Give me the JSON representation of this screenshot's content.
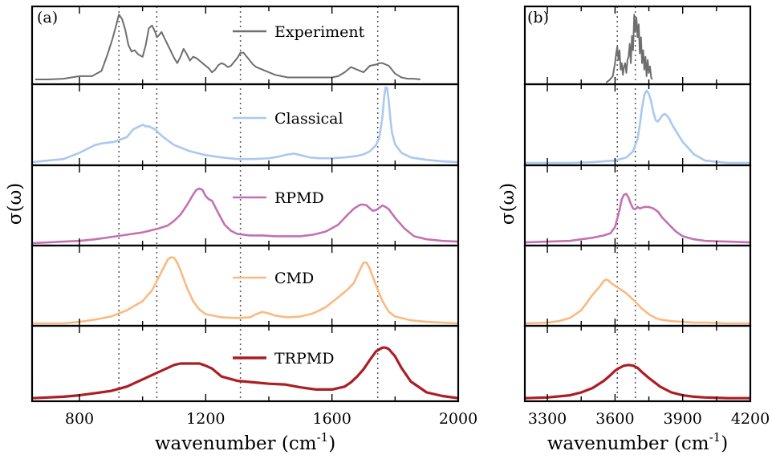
{
  "chart_data": [
    {
      "type": "line",
      "panel_label": "(a)",
      "xlabel": "wavenumber (cm",
      "xlabel_sup": "-1",
      "xlabel_close": ")",
      "ylabel": "σ(ω)",
      "xlim": [
        650,
        2000
      ],
      "xticks": [
        800,
        1200,
        1600,
        2000
      ],
      "xtick_labels": [
        "800",
        "1200",
        "1600",
        "2000"
      ],
      "minor_xticks": [
        1000,
        1400,
        1800
      ],
      "reference_lines": [
        925,
        1045,
        1310,
        1745
      ],
      "grid": false,
      "legend": "in-panel, top-center",
      "series": [
        {
          "name": "Experiment",
          "color": "#6e6e6e",
          "ylim": [
            0,
            1.15
          ],
          "x": [
            660,
            700,
            750,
            800,
            840,
            870,
            890,
            905,
            915,
            925,
            935,
            945,
            955,
            965,
            975,
            985,
            995,
            1000,
            1010,
            1020,
            1030,
            1040,
            1045,
            1050,
            1060,
            1070,
            1080,
            1090,
            1100,
            1110,
            1120,
            1130,
            1140,
            1150,
            1160,
            1170,
            1180,
            1190,
            1200,
            1210,
            1220,
            1230,
            1240,
            1250,
            1260,
            1270,
            1280,
            1290,
            1300,
            1310,
            1320,
            1330,
            1340,
            1350,
            1360,
            1380,
            1400,
            1420,
            1440,
            1460,
            1480,
            1500,
            1520,
            1540,
            1560,
            1580,
            1600,
            1620,
            1640,
            1660,
            1680,
            1700,
            1720,
            1740,
            1750,
            1760,
            1780,
            1800,
            1820,
            1840,
            1860,
            1880
          ],
          "y": [
            0.05,
            0.05,
            0.06,
            0.1,
            0.1,
            0.18,
            0.45,
            0.68,
            0.86,
            1.05,
            0.98,
            0.82,
            0.58,
            0.48,
            0.5,
            0.44,
            0.41,
            0.4,
            0.58,
            0.84,
            0.88,
            0.78,
            0.7,
            0.72,
            0.78,
            0.68,
            0.58,
            0.48,
            0.38,
            0.3,
            0.4,
            0.52,
            0.44,
            0.34,
            0.4,
            0.38,
            0.34,
            0.3,
            0.26,
            0.22,
            0.16,
            0.2,
            0.27,
            0.3,
            0.28,
            0.24,
            0.26,
            0.32,
            0.38,
            0.46,
            0.46,
            0.4,
            0.34,
            0.28,
            0.24,
            0.2,
            0.16,
            0.12,
            0.1,
            0.08,
            0.08,
            0.08,
            0.08,
            0.08,
            0.08,
            0.08,
            0.08,
            0.1,
            0.16,
            0.24,
            0.2,
            0.16,
            0.26,
            0.28,
            0.3,
            0.3,
            0.26,
            0.14,
            0.08,
            0.06,
            0.06,
            0.05
          ]
        },
        {
          "name": "Classical",
          "color": "#a9c9f0",
          "ylim": [
            0,
            1.0
          ],
          "x": [
            650,
            700,
            750,
            800,
            830,
            850,
            870,
            890,
            910,
            930,
            950,
            970,
            990,
            1000,
            1010,
            1020,
            1030,
            1040,
            1050,
            1060,
            1080,
            1100,
            1150,
            1200,
            1250,
            1300,
            1350,
            1400,
            1430,
            1460,
            1480,
            1500,
            1530,
            1560,
            1600,
            1640,
            1680,
            1700,
            1720,
            1740,
            1750,
            1760,
            1765,
            1770,
            1775,
            1780,
            1785,
            1790,
            1800,
            1820,
            1850,
            1900,
            1950,
            2000
          ],
          "y": [
            0.02,
            0.04,
            0.06,
            0.14,
            0.2,
            0.24,
            0.26,
            0.27,
            0.28,
            0.31,
            0.34,
            0.44,
            0.48,
            0.5,
            0.48,
            0.48,
            0.46,
            0.44,
            0.4,
            0.36,
            0.3,
            0.24,
            0.16,
            0.11,
            0.08,
            0.06,
            0.06,
            0.07,
            0.09,
            0.12,
            0.13,
            0.11,
            0.08,
            0.07,
            0.07,
            0.08,
            0.1,
            0.12,
            0.16,
            0.24,
            0.34,
            0.6,
            0.85,
            0.98,
            0.97,
            0.8,
            0.58,
            0.4,
            0.25,
            0.14,
            0.08,
            0.05,
            0.03,
            0.02
          ]
        },
        {
          "name": "RPMD",
          "color": "#c471b3",
          "ylim": [
            0,
            1.0
          ],
          "x": [
            650,
            700,
            750,
            800,
            850,
            900,
            950,
            1000,
            1050,
            1080,
            1100,
            1120,
            1140,
            1160,
            1170,
            1180,
            1190,
            1200,
            1210,
            1220,
            1240,
            1260,
            1280,
            1300,
            1340,
            1380,
            1420,
            1460,
            1500,
            1540,
            1580,
            1620,
            1650,
            1670,
            1690,
            1700,
            1710,
            1720,
            1730,
            1740,
            1760,
            1770,
            1780,
            1800,
            1830,
            1860,
            1900,
            1950,
            2000
          ],
          "y": [
            0.01,
            0.02,
            0.03,
            0.04,
            0.06,
            0.09,
            0.12,
            0.15,
            0.2,
            0.24,
            0.3,
            0.38,
            0.5,
            0.64,
            0.7,
            0.72,
            0.7,
            0.62,
            0.58,
            0.56,
            0.4,
            0.25,
            0.17,
            0.13,
            0.11,
            0.11,
            0.1,
            0.1,
            0.1,
            0.12,
            0.16,
            0.25,
            0.38,
            0.46,
            0.51,
            0.51,
            0.5,
            0.46,
            0.43,
            0.44,
            0.5,
            0.48,
            0.45,
            0.34,
            0.2,
            0.1,
            0.06,
            0.04,
            0.03
          ]
        },
        {
          "name": "CMD",
          "color": "#f9ba81",
          "ylim": [
            0,
            1.0
          ],
          "x": [
            650,
            700,
            750,
            800,
            850,
            900,
            950,
            1000,
            1030,
            1050,
            1070,
            1080,
            1090,
            1100,
            1110,
            1120,
            1140,
            1160,
            1180,
            1200,
            1250,
            1300,
            1340,
            1360,
            1380,
            1400,
            1420,
            1460,
            1500,
            1540,
            1580,
            1620,
            1650,
            1670,
            1690,
            1700,
            1710,
            1720,
            1740,
            1760,
            1780,
            1800,
            1850,
            1900,
            1950,
            2000
          ],
          "y": [
            0.01,
            0.01,
            0.01,
            0.03,
            0.06,
            0.1,
            0.18,
            0.3,
            0.44,
            0.6,
            0.76,
            0.84,
            0.87,
            0.86,
            0.8,
            0.7,
            0.48,
            0.3,
            0.19,
            0.13,
            0.09,
            0.08,
            0.09,
            0.13,
            0.16,
            0.14,
            0.11,
            0.09,
            0.1,
            0.14,
            0.22,
            0.35,
            0.45,
            0.54,
            0.72,
            0.8,
            0.8,
            0.72,
            0.5,
            0.3,
            0.16,
            0.1,
            0.05,
            0.03,
            0.02,
            0.01
          ]
        },
        {
          "name": "TRPMD",
          "color": "#ab1e23",
          "ylim": [
            0,
            1.0
          ],
          "x": [
            650,
            700,
            750,
            800,
            850,
            900,
            950,
            1000,
            1050,
            1100,
            1120,
            1150,
            1180,
            1200,
            1220,
            1250,
            1300,
            1350,
            1400,
            1450,
            1500,
            1550,
            1600,
            1640,
            1660,
            1680,
            1700,
            1720,
            1740,
            1760,
            1770,
            1780,
            1800,
            1820,
            1850,
            1900,
            1950,
            2000
          ],
          "y": [
            0.02,
            0.03,
            0.04,
            0.06,
            0.09,
            0.12,
            0.18,
            0.28,
            0.38,
            0.48,
            0.5,
            0.5,
            0.5,
            0.47,
            0.43,
            0.32,
            0.26,
            0.24,
            0.22,
            0.21,
            0.17,
            0.14,
            0.14,
            0.18,
            0.24,
            0.32,
            0.42,
            0.55,
            0.67,
            0.72,
            0.72,
            0.7,
            0.6,
            0.44,
            0.25,
            0.1,
            0.05,
            0.02
          ]
        }
      ]
    },
    {
      "type": "line",
      "panel_label": "(b)",
      "xlabel": "wavenumber (cm",
      "xlabel_sup": "-1",
      "xlabel_close": ")",
      "ylabel": "σ(ω)",
      "xlim": [
        3200,
        4200
      ],
      "xticks": [
        3300,
        3600,
        3900,
        4200
      ],
      "xtick_labels": [
        "3300",
        "3600",
        "3900",
        "4200"
      ],
      "minor_xticks": [
        3450,
        3750,
        4050
      ],
      "reference_lines": [
        3610,
        3690
      ],
      "grid": false,
      "legend": "none",
      "series": [
        {
          "name": "Experiment",
          "color": "#6e6e6e",
          "ylim": [
            0,
            1.15
          ],
          "x": [
            3560,
            3575,
            3590,
            3600,
            3605,
            3610,
            3615,
            3620,
            3625,
            3630,
            3635,
            3640,
            3645,
            3650,
            3655,
            3660,
            3665,
            3670,
            3675,
            3680,
            3685,
            3690,
            3695,
            3700,
            3705,
            3710,
            3715,
            3720,
            3725,
            3730,
            3735,
            3740,
            3745,
            3750,
            3755,
            3760,
            3765
          ],
          "y": [
            0,
            0.04,
            0.1,
            0.3,
            0.45,
            0.55,
            0.35,
            0.5,
            0.2,
            0.3,
            0.12,
            0.25,
            0.3,
            0.15,
            0.35,
            0.4,
            0.6,
            0.3,
            0.72,
            0.5,
            1.05,
            0.78,
            1.0,
            0.7,
            0.9,
            0.45,
            0.7,
            0.3,
            0.5,
            0.2,
            0.4,
            0.1,
            0.35,
            0.15,
            0.25,
            0.08,
            0.05
          ]
        },
        {
          "name": "Classical",
          "color": "#a9c9f0",
          "ylim": [
            0,
            1.0
          ],
          "x": [
            3200,
            3300,
            3400,
            3500,
            3600,
            3650,
            3680,
            3700,
            3710,
            3720,
            3730,
            3740,
            3750,
            3760,
            3770,
            3780,
            3790,
            3800,
            3810,
            3820,
            3830,
            3840,
            3850,
            3870,
            3900,
            3950,
            4000,
            4100,
            4200
          ],
          "y": [
            0.01,
            0.01,
            0.01,
            0.02,
            0.04,
            0.08,
            0.16,
            0.32,
            0.5,
            0.72,
            0.88,
            0.94,
            0.9,
            0.8,
            0.66,
            0.56,
            0.54,
            0.58,
            0.62,
            0.64,
            0.62,
            0.58,
            0.52,
            0.42,
            0.28,
            0.12,
            0.04,
            0.01,
            0.01
          ]
        },
        {
          "name": "RPMD",
          "color": "#c471b3",
          "ylim": [
            0,
            1.0
          ],
          "x": [
            3200,
            3300,
            3400,
            3450,
            3500,
            3550,
            3580,
            3600,
            3620,
            3630,
            3640,
            3650,
            3660,
            3670,
            3680,
            3690,
            3700,
            3710,
            3730,
            3750,
            3770,
            3790,
            3810,
            3830,
            3850,
            3870,
            3900,
            3950,
            4000,
            4100,
            4200
          ],
          "y": [
            0.02,
            0.03,
            0.04,
            0.06,
            0.08,
            0.11,
            0.14,
            0.22,
            0.44,
            0.58,
            0.64,
            0.65,
            0.6,
            0.52,
            0.46,
            0.45,
            0.48,
            0.46,
            0.48,
            0.48,
            0.46,
            0.42,
            0.34,
            0.28,
            0.22,
            0.16,
            0.1,
            0.06,
            0.04,
            0.03,
            0.02
          ]
        },
        {
          "name": "CMD",
          "color": "#f9ba81",
          "ylim": [
            0,
            1.0
          ],
          "x": [
            3200,
            3300,
            3350,
            3400,
            3450,
            3500,
            3530,
            3550,
            3560,
            3570,
            3580,
            3600,
            3620,
            3650,
            3680,
            3700,
            3720,
            3750,
            3780,
            3800,
            3850,
            3900,
            3950,
            4000,
            4100,
            4200
          ],
          "y": [
            0.01,
            0.02,
            0.04,
            0.08,
            0.18,
            0.38,
            0.48,
            0.56,
            0.58,
            0.57,
            0.54,
            0.5,
            0.46,
            0.4,
            0.32,
            0.26,
            0.2,
            0.13,
            0.08,
            0.06,
            0.04,
            0.03,
            0.02,
            0.02,
            0.01,
            0.01
          ]
        },
        {
          "name": "TRPMD",
          "color": "#ab1e23",
          "ylim": [
            0,
            1.0
          ],
          "x": [
            3200,
            3300,
            3400,
            3450,
            3500,
            3550,
            3580,
            3600,
            3620,
            3640,
            3660,
            3680,
            3700,
            3720,
            3750,
            3800,
            3850,
            3900,
            3950,
            4000,
            4100,
            4200
          ],
          "y": [
            0.02,
            0.03,
            0.06,
            0.1,
            0.16,
            0.26,
            0.34,
            0.4,
            0.44,
            0.47,
            0.48,
            0.47,
            0.44,
            0.38,
            0.3,
            0.18,
            0.1,
            0.06,
            0.04,
            0.03,
            0.02,
            0.02
          ]
        }
      ]
    }
  ]
}
